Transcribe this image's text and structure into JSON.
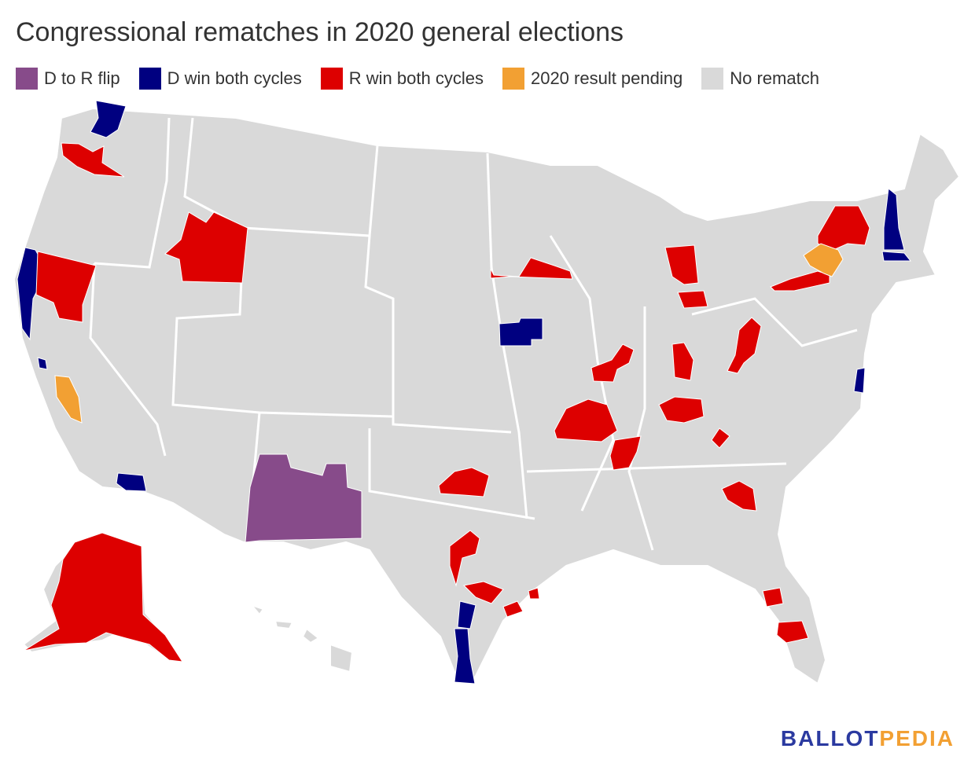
{
  "title": "Congressional rematches in 2020 general elections",
  "legend": [
    {
      "label": "D to R flip",
      "color": "#874b8a"
    },
    {
      "label": "D win both cycles",
      "color": "#000080"
    },
    {
      "label": "R win both cycles",
      "color": "#dd0000"
    },
    {
      "label": "2020 result pending",
      "color": "#f2a033"
    },
    {
      "label": "No rematch",
      "color": "#d9d9d9"
    }
  ],
  "colors": {
    "land": "#d9d9d9",
    "border": "#ffffff",
    "d_to_r": "#874b8a",
    "d_both": "#000080",
    "r_both": "#dd0000",
    "pending": "#f2a033"
  },
  "logo": {
    "part1": "BALLOT",
    "part2": "PEDIA"
  }
}
